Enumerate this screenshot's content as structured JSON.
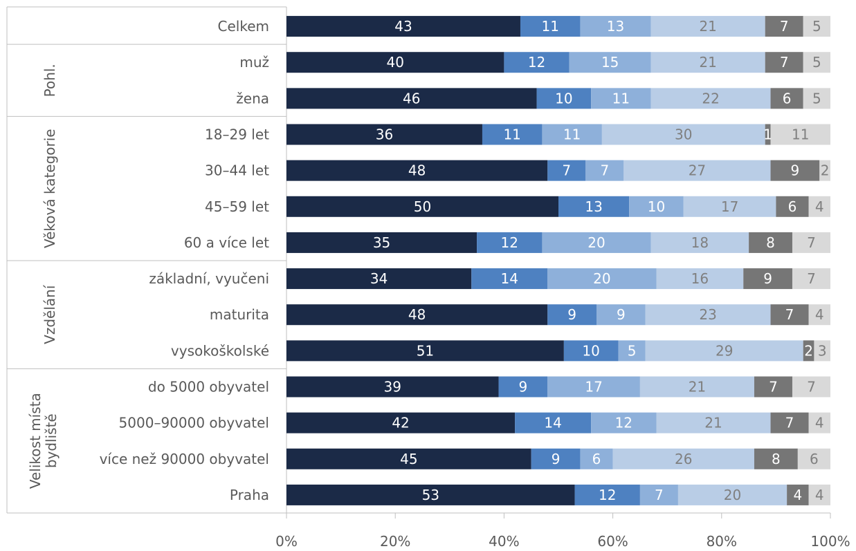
{
  "chart_data": {
    "type": "bar",
    "orientation": "horizontal",
    "stacked": true,
    "categories": [
      "Celkem",
      "muž",
      "žena",
      "18–29 let",
      "30–44 let",
      "45–59 let",
      "60 a více let",
      "základní, vyučeni",
      "maturita",
      "vysokoškolské",
      "do 5000 obyvatel",
      "5000–90000 obyvatel",
      "více než 90000 obyvatel",
      "Praha"
    ],
    "groups": [
      {
        "label": "",
        "categories": [
          "Celkem"
        ]
      },
      {
        "label": "Pohl.",
        "categories": [
          "muž",
          "žena"
        ]
      },
      {
        "label": "Věková kategorie",
        "categories": [
          "18–29 let",
          "30–44 let",
          "45–59 let",
          "60 a více let"
        ]
      },
      {
        "label": "Vzdělání",
        "categories": [
          "základní, vyučeni",
          "maturita",
          "vysokoškolské"
        ]
      },
      {
        "label": "Velikost místa bydliště",
        "categories": [
          "do 5000 obyvatel",
          "5000–90000 obyvatel",
          "více než 90000 obyvatel",
          "Praha"
        ]
      }
    ],
    "series": [
      {
        "values": [
          43,
          40,
          46,
          36,
          48,
          50,
          35,
          34,
          48,
          51,
          39,
          42,
          45,
          53
        ],
        "color": "#1b2a47",
        "label_color": "#ffffff"
      },
      {
        "values": [
          11,
          12,
          10,
          11,
          7,
          13,
          12,
          14,
          9,
          10,
          9,
          14,
          9,
          12
        ],
        "color": "#4e81c1",
        "label_color": "#ffffff"
      },
      {
        "values": [
          13,
          15,
          11,
          11,
          7,
          10,
          20,
          20,
          9,
          5,
          17,
          12,
          6,
          7
        ],
        "color": "#8eb0da",
        "label_color": "#ffffff"
      },
      {
        "values": [
          21,
          21,
          22,
          30,
          27,
          17,
          18,
          16,
          23,
          29,
          21,
          21,
          26,
          20
        ],
        "color": "#b9cde6",
        "label_color": "#7f7f7f"
      },
      {
        "values": [
          7,
          7,
          6,
          1,
          9,
          6,
          8,
          9,
          7,
          2,
          7,
          7,
          8,
          4
        ],
        "color": "#767676",
        "label_color": "#ffffff"
      },
      {
        "values": [
          5,
          5,
          5,
          11,
          2,
          4,
          7,
          7,
          4,
          3,
          7,
          4,
          6,
          4
        ],
        "color": "#d9d9d9",
        "label_color": "#7f7f7f"
      }
    ],
    "x_ticks": [
      "0%",
      "20%",
      "40%",
      "60%",
      "80%",
      "100%"
    ],
    "xlim": [
      0,
      100
    ],
    "grid": false,
    "legend": "none"
  }
}
